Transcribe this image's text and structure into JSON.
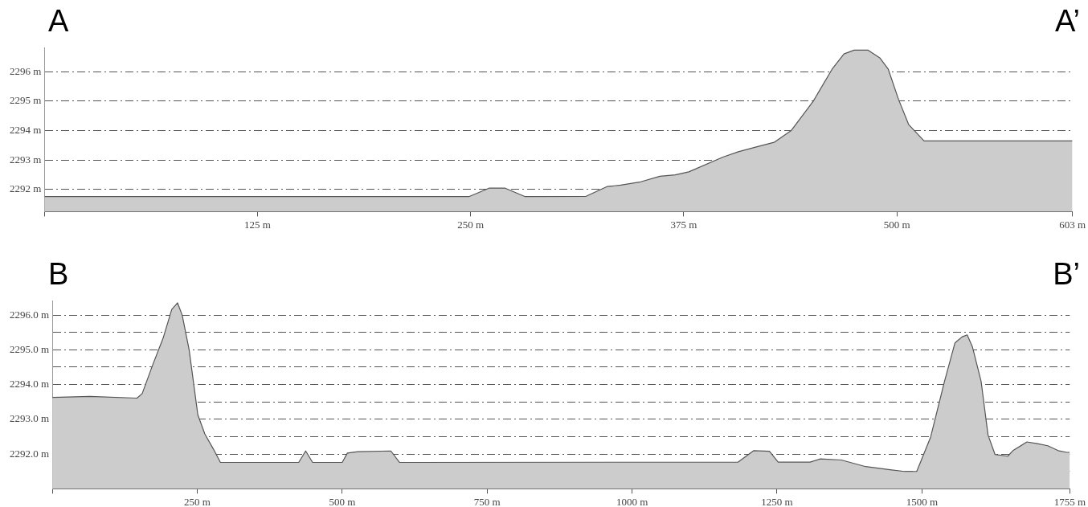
{
  "chart_data": [
    {
      "type": "area",
      "annotations": [
        "A",
        "A’"
      ],
      "color": "#cccccc",
      "grid": "y",
      "x": [
        0,
        249,
        261,
        270,
        282,
        317.7,
        330,
        338,
        349,
        361,
        370,
        378,
        398,
        407,
        418,
        428,
        438,
        451,
        462,
        469,
        475,
        483,
        490,
        495,
        501,
        507,
        516,
        603
      ],
      "values": [
        2291.76,
        2291.76,
        2292.05,
        2292.05,
        2291.76,
        2291.77,
        2292.1,
        2292.15,
        2292.25,
        2292.45,
        2292.5,
        2292.6,
        2293.1,
        2293.28,
        2293.45,
        2293.6,
        2294.0,
        2295.0,
        2296.08,
        2296.6,
        2296.73,
        2296.73,
        2296.47,
        2296.08,
        2295.06,
        2294.2,
        2293.65,
        2293.65
      ],
      "xlim": [
        0,
        603
      ],
      "ylim": [
        2291.25,
        2296.8
      ],
      "xticks": [
        {
          "value": 0,
          "label": null
        },
        {
          "value": 125,
          "label": "125 m"
        },
        {
          "value": 250,
          "label": "250 m"
        },
        {
          "value": 375,
          "label": "375 m"
        },
        {
          "value": 500,
          "label": "500 m"
        },
        {
          "value": 603,
          "label": "603 m"
        }
      ],
      "yticks": [
        {
          "value": 2292,
          "label": "2292 m"
        },
        {
          "value": 2293,
          "label": "2293 m"
        },
        {
          "value": 2294,
          "label": "2294 m"
        },
        {
          "value": 2295,
          "label": "2295 m"
        },
        {
          "value": 2296,
          "label": "2296 m"
        }
      ]
    },
    {
      "type": "area",
      "annotations": [
        "B",
        "B’"
      ],
      "color": "#cccccc",
      "grid": "y",
      "x": [
        0,
        65,
        146,
        155,
        173,
        191,
        206,
        216,
        224,
        236,
        251,
        263,
        278,
        290,
        425,
        437,
        449,
        500,
        509,
        527,
        584,
        599,
        1183,
        1192,
        1210,
        1237,
        1252,
        1307,
        1325,
        1361,
        1403,
        1445,
        1470,
        1491,
        1515,
        1539,
        1557,
        1569,
        1578,
        1587,
        1602,
        1614,
        1626,
        1648,
        1657,
        1681,
        1699,
        1717,
        1735,
        1750,
        1755
      ],
      "values": [
        2293.63,
        2293.66,
        2293.61,
        2293.74,
        2294.56,
        2295.33,
        2296.16,
        2296.35,
        2296.0,
        2295.0,
        2293.13,
        2292.58,
        2292.14,
        2291.76,
        2291.76,
        2292.09,
        2291.76,
        2291.76,
        2292.03,
        2292.07,
        2292.09,
        2291.76,
        2291.77,
        2291.88,
        2292.1,
        2292.08,
        2291.77,
        2291.77,
        2291.86,
        2291.83,
        2291.64,
        2291.55,
        2291.5,
        2291.5,
        2292.49,
        2294.1,
        2295.2,
        2295.37,
        2295.43,
        2295.09,
        2294.1,
        2292.55,
        2291.99,
        2291.94,
        2292.1,
        2292.35,
        2292.3,
        2292.24,
        2292.1,
        2292.05,
        2292.05
      ],
      "xlim": [
        0,
        1755
      ],
      "ylim": [
        2291.0,
        2296.4
      ],
      "xticks": [
        {
          "value": 0,
          "label": null
        },
        {
          "value": 250,
          "label": "250 m"
        },
        {
          "value": 500,
          "label": "500 m"
        },
        {
          "value": 750,
          "label": "750 m"
        },
        {
          "value": 1000,
          "label": "1000 m"
        },
        {
          "value": 1250,
          "label": "1250 m"
        },
        {
          "value": 1500,
          "label": "1500 m"
        },
        {
          "value": 1755,
          "label": "1755 m"
        }
      ],
      "yticks": [
        {
          "value": 2291.5,
          "label": null
        },
        {
          "value": 2292.0,
          "label": "2292.0 m"
        },
        {
          "value": 2292.5,
          "label": null
        },
        {
          "value": 2293.0,
          "label": "2293.0 m"
        },
        {
          "value": 2293.5,
          "label": null
        },
        {
          "value": 2294.0,
          "label": "2294.0 m"
        },
        {
          "value": 2294.5,
          "label": null
        },
        {
          "value": 2295.0,
          "label": "2295.0 m"
        },
        {
          "value": 2295.5,
          "label": null
        },
        {
          "value": 2296.0,
          "label": "2296.0 m"
        }
      ]
    }
  ]
}
